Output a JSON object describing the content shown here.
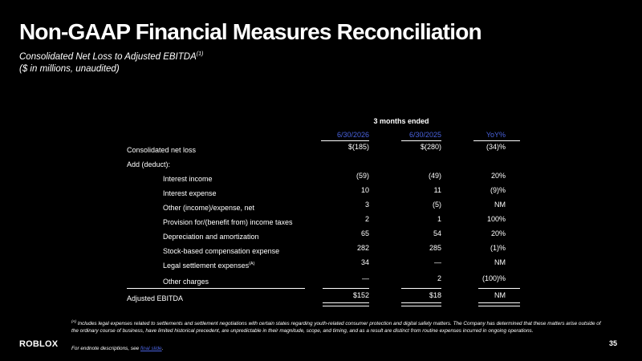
{
  "title": "Non-GAAP Financial Measures Reconciliation",
  "subtitle": {
    "line1": "Consolidated Net Loss to Adjusted EBITDA",
    "line1_sup": "(1)",
    "line2": "($ in millions, unaudited)"
  },
  "table": {
    "period_header": "3 months ended",
    "columns": [
      "6/30/2026",
      "6/30/2025",
      "YoY%"
    ],
    "rows": [
      {
        "label": "Consolidated net loss",
        "values": [
          "$(185)",
          "$(280)",
          "(34)%"
        ]
      },
      {
        "label": "Add (deduct):",
        "values": [
          "",
          "",
          ""
        ]
      },
      {
        "label": "Interest income",
        "values": [
          "(59)",
          "(49)",
          "20%"
        ]
      },
      {
        "label": "Interest expense",
        "values": [
          "10",
          "11",
          "(9)%"
        ]
      },
      {
        "label": "Other (income)/expense, net",
        "values": [
          "3",
          "(5)",
          "NM"
        ]
      },
      {
        "label": "Provision for/(benefit from) income taxes",
        "values": [
          "2",
          "1",
          "100%"
        ]
      },
      {
        "label": "Depreciation and amortization",
        "values": [
          "65",
          "54",
          "20%"
        ]
      },
      {
        "label": "Stock-based compensation expense",
        "values": [
          "282",
          "285",
          "(1)%"
        ]
      },
      {
        "label": "Legal settlement expenses",
        "sup": "(A)",
        "values": [
          "34",
          "—",
          "NM"
        ]
      },
      {
        "label": "Other charges",
        "values": [
          "—",
          "2",
          "(100)%"
        ]
      },
      {
        "label": "Adjusted EBITDA",
        "values": [
          "$152",
          "$18",
          "NM"
        ]
      }
    ]
  },
  "footnote": {
    "marker": "(A)",
    "text": "Includes legal expenses related to settlements and settlement negotiations with certain states regarding youth-related consumer protection and digital safety matters. The Company has determined that these matters arise outside of the ordinary course of business, have limited historical precedent, are unpredictable in their magnitude, scope, and timing, and as a result are distinct from routine expenses incurred in ongoing operations."
  },
  "endnote": {
    "prefix": "For endnote descriptions, see ",
    "link": "final slide",
    "suffix": "."
  },
  "logo": "ROBLOX",
  "page_number": "35",
  "colors": {
    "background": "#000000",
    "text": "#ffffff",
    "accent": "#4a63e0"
  }
}
